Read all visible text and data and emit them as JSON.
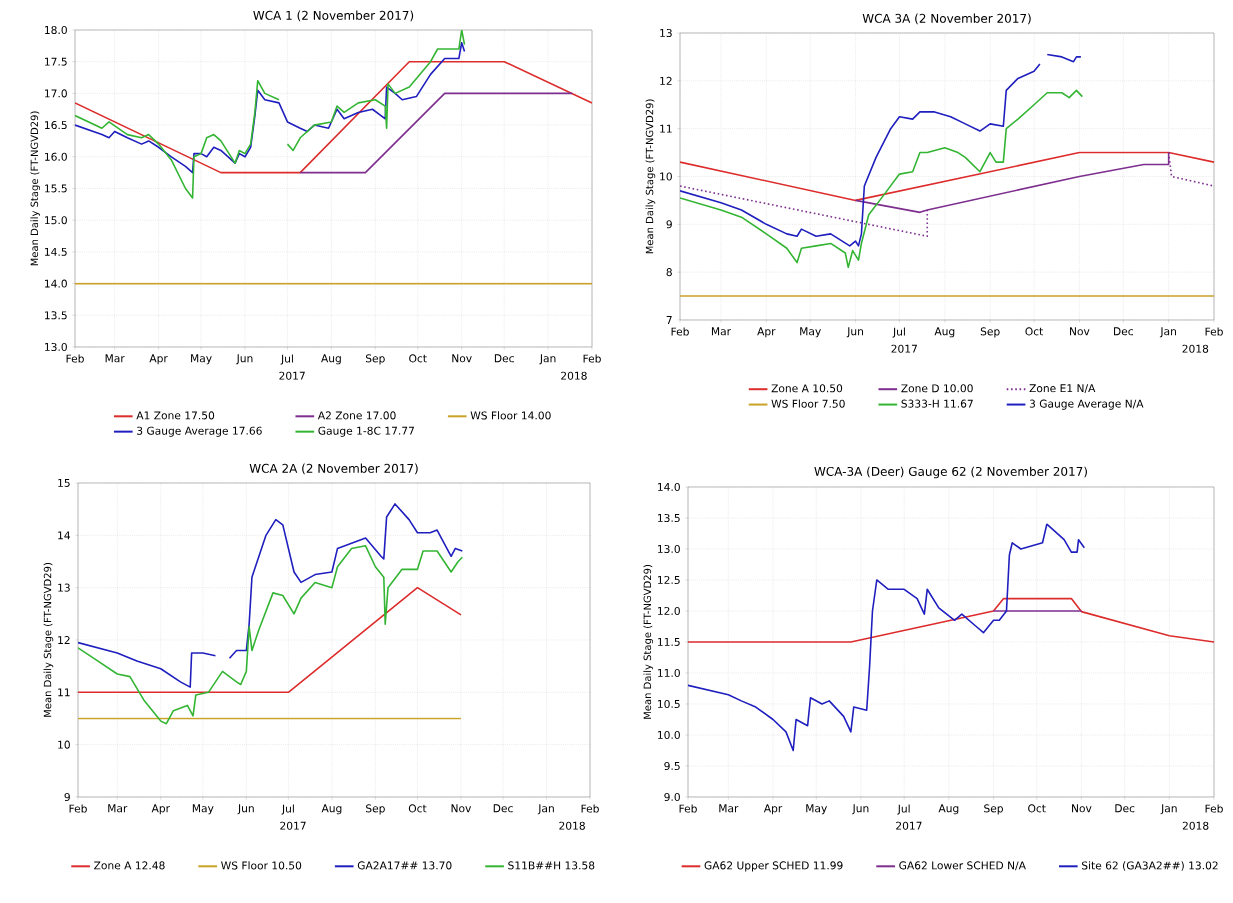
{
  "chart_data": [
    {
      "type": "line",
      "title": "WCA 1 (2 November 2017)",
      "ylabel": "Mean Daily Stage (FT-NGVD29)",
      "grid": true,
      "legend": "bottom",
      "annotations": [
        "2017",
        "2018"
      ],
      "xlim": [
        "2017-02-01",
        "2018-02-01"
      ],
      "xticks": [
        {
          "value": "2017-02-01",
          "label": "Feb"
        },
        {
          "value": "2017-03-01",
          "label": "Mar"
        },
        {
          "value": "2017-04-01",
          "label": "Apr"
        },
        {
          "value": "2017-05-01",
          "label": "May"
        },
        {
          "value": "2017-06-01",
          "label": "Jun"
        },
        {
          "value": "2017-07-01",
          "label": "Jul"
        },
        {
          "value": "2017-08-01",
          "label": "Aug"
        },
        {
          "value": "2017-09-01",
          "label": "Sep"
        },
        {
          "value": "2017-10-01",
          "label": "Oct"
        },
        {
          "value": "2017-11-01",
          "label": "Nov"
        },
        {
          "value": "2017-12-01",
          "label": "Dec"
        },
        {
          "value": "2018-01-01",
          "label": "Jan"
        },
        {
          "value": "2018-02-01",
          "label": "Feb"
        }
      ],
      "ylim": [
        13,
        18
      ],
      "yticks": [
        {
          "value": 13,
          "label": "13.0"
        },
        13.5,
        {
          "value": 14,
          "label": "14.0"
        },
        14.5,
        {
          "value": 15,
          "label": "15.0"
        },
        15.5,
        {
          "value": 16,
          "label": "16.0"
        },
        16.5,
        {
          "value": 17,
          "label": "17.0"
        },
        17.5,
        {
          "value": 18,
          "label": "18.0"
        }
      ],
      "series": [
        {
          "name": "A1 Zone 17.50",
          "color": "#dd2c2c",
          "x": [
            "2017-02-01",
            "2017-05-15",
            "2017-07-10",
            "2017-09-25",
            "2017-12-01",
            "2018-02-01"
          ],
          "values": [
            16.85,
            15.75,
            15.75,
            17.5,
            17.5,
            16.85
          ]
        },
        {
          "name": "A2 Zone 17.00",
          "color": "#7d2e8e",
          "x": [
            "2017-07-10",
            "2017-08-25",
            "2017-10-20",
            "2018-01-18"
          ],
          "values": [
            15.75,
            15.75,
            17.0,
            17.0
          ]
        },
        {
          "name": "WS Floor 14.00",
          "color": "#c9a227",
          "x": [
            "2017-02-01",
            "2018-02-01"
          ],
          "values": [
            14.0,
            14.0
          ]
        },
        {
          "name": "3 Gauge Average 17.66",
          "color": "#1f1fbf",
          "x": [
            "2017-02-01",
            "2017-02-20",
            "2017-02-25",
            "2017-03-01",
            "2017-03-10",
            "2017-03-20",
            "2017-03-25",
            "2017-04-01",
            "2017-04-10",
            "2017-04-20",
            "2017-04-25",
            "2017-04-26",
            "2017-05-01",
            "2017-05-05",
            "2017-05-10",
            "2017-05-15",
            "2017-05-25",
            "2017-05-28",
            "2017-06-01",
            "2017-06-05",
            "2017-06-08",
            "2017-06-10",
            "2017-06-15",
            "2017-06-25",
            "2017-07-01",
            "2017-07-10",
            "2017-07-15",
            "2017-07-20",
            "2017-07-30",
            "2017-08-01",
            "2017-08-05",
            "2017-08-10",
            "2017-08-20",
            "2017-08-30",
            "2017-09-05",
            "2017-09-08",
            "2017-09-09",
            "2017-09-15",
            "2017-09-20",
            "2017-09-30",
            "2017-10-10",
            "2017-10-20",
            "2017-10-30",
            "2017-11-01",
            "2017-11-03"
          ],
          "values": [
            16.5,
            16.35,
            16.3,
            16.4,
            16.3,
            16.2,
            16.25,
            16.15,
            16.0,
            15.85,
            15.75,
            16.05,
            16.05,
            16.0,
            16.15,
            16.1,
            15.9,
            16.05,
            16.0,
            16.15,
            16.65,
            17.05,
            16.9,
            16.85,
            16.55,
            16.45,
            16.4,
            16.5,
            16.45,
            16.55,
            16.75,
            16.6,
            16.7,
            16.75,
            16.65,
            16.6,
            17.1,
            17.0,
            16.9,
            16.95,
            17.3,
            17.55,
            17.55,
            17.8,
            17.66
          ]
        },
        {
          "name": "Gauge 1-8C 17.77",
          "color": "#33b533",
          "x": [
            "2017-02-01",
            "2017-02-20",
            "2017-02-25",
            "2017-03-10",
            "2017-03-20",
            "2017-03-25",
            "2017-04-01",
            "2017-04-10",
            "2017-04-20",
            "2017-04-25",
            "2017-04-26",
            "2017-05-01",
            "2017-05-05",
            "2017-05-10",
            "2017-05-15",
            "2017-05-25",
            "2017-05-28",
            "2017-06-01",
            "2017-06-05",
            "2017-06-08",
            "2017-06-10",
            "2017-06-15",
            "2017-06-25",
            "2017-06-28",
            "2017-07-01",
            "2017-07-05",
            "2017-07-10",
            "2017-07-20",
            "2017-08-01",
            "2017-08-05",
            "2017-08-10",
            "2017-08-20",
            "2017-09-01",
            "2017-09-08",
            "2017-09-09",
            "2017-09-10",
            "2017-09-15",
            "2017-09-25",
            "2017-10-10",
            "2017-10-15",
            "2017-10-30",
            "2017-11-01",
            "2017-11-03"
          ],
          "values": [
            16.65,
            16.45,
            16.55,
            16.35,
            16.3,
            16.35,
            16.2,
            15.95,
            15.5,
            15.35,
            16.0,
            16.05,
            16.3,
            16.35,
            16.25,
            15.9,
            16.1,
            16.05,
            16.2,
            16.7,
            17.2,
            17.0,
            16.9,
            null,
            16.2,
            16.1,
            16.3,
            16.5,
            16.55,
            16.8,
            16.7,
            16.85,
            16.9,
            16.8,
            16.45,
            17.15,
            17.0,
            17.1,
            17.5,
            17.7,
            17.7,
            18.0,
            17.77
          ]
        }
      ]
    },
    {
      "type": "line",
      "title": "WCA 3A (2 November 2017)",
      "ylabel": "Mean Daily Stage (FT-NGVD29)",
      "grid": true,
      "legend": "bottom",
      "annotations": [
        "2017",
        "2018"
      ],
      "xlim": [
        "2017-02-01",
        "2018-02-01"
      ],
      "xticks": [
        {
          "value": "2017-02-01",
          "label": "Feb"
        },
        {
          "value": "2017-03-01",
          "label": "Mar"
        },
        {
          "value": "2017-04-01",
          "label": "Apr"
        },
        {
          "value": "2017-05-01",
          "label": "May"
        },
        {
          "value": "2017-06-01",
          "label": "Jun"
        },
        {
          "value": "2017-07-01",
          "label": "Jul"
        },
        {
          "value": "2017-08-01",
          "label": "Aug"
        },
        {
          "value": "2017-09-01",
          "label": "Sep"
        },
        {
          "value": "2017-10-01",
          "label": "Oct"
        },
        {
          "value": "2017-11-01",
          "label": "Nov"
        },
        {
          "value": "2017-12-01",
          "label": "Dec"
        },
        {
          "value": "2018-01-01",
          "label": "Jan"
        },
        {
          "value": "2018-02-01",
          "label": "Feb"
        }
      ],
      "ylim": [
        7,
        13
      ],
      "yticks": [
        7,
        8,
        9,
        10,
        11,
        12,
        13
      ],
      "series": [
        {
          "name": "Zone A 10.50",
          "color": "#dd2c2c",
          "x": [
            "2017-02-01",
            "2017-06-01",
            "2017-11-01",
            "2018-01-01",
            "2018-02-01"
          ],
          "values": [
            10.3,
            9.5,
            10.5,
            10.5,
            10.3
          ]
        },
        {
          "name": "Zone D 10.00",
          "color": "#7d2e8e",
          "x": [
            "2017-06-01",
            "2017-07-15",
            "2017-07-20",
            "2017-11-01",
            "2017-12-15",
            "2018-01-01",
            "2018-01-01"
          ],
          "values": [
            9.5,
            9.25,
            9.3,
            10.0,
            10.25,
            10.25,
            10.5
          ]
        },
        {
          "name": "Zone E1 N/A",
          "color": "#7d2e8e",
          "line_style": "dotted",
          "x": [
            "2017-02-01",
            "2017-07-20",
            "2017-07-20",
            "2017-10-01",
            "2018-01-01",
            "2018-01-03",
            "2018-02-01"
          ],
          "values": [
            9.8,
            8.75,
            9.3,
            null,
            10.5,
            10.0,
            9.8
          ]
        },
        {
          "name": "WS Floor 7.50",
          "color": "#c9a227",
          "x": [
            "2017-02-01",
            "2018-02-01"
          ],
          "values": [
            7.5,
            7.5
          ]
        },
        {
          "name": "S333-H 11.67",
          "color": "#33b533",
          "x": [
            "2017-02-01",
            "2017-03-01",
            "2017-03-15",
            "2017-04-01",
            "2017-04-15",
            "2017-04-22",
            "2017-04-25",
            "2017-05-05",
            "2017-05-15",
            "2017-05-25",
            "2017-05-27",
            "2017-05-30",
            "2017-06-03",
            "2017-06-05",
            "2017-06-10",
            "2017-06-20",
            "2017-07-01",
            "2017-07-10",
            "2017-07-15",
            "2017-07-20",
            "2017-08-01",
            "2017-08-10",
            "2017-08-15",
            "2017-08-25",
            "2017-09-01",
            "2017-09-05",
            "2017-09-10",
            "2017-09-12",
            "2017-09-20",
            "2017-10-01",
            "2017-10-10",
            "2017-10-20",
            "2017-10-25",
            "2017-10-30",
            "2017-11-03"
          ],
          "values": [
            9.55,
            9.3,
            9.15,
            8.8,
            8.5,
            8.2,
            8.5,
            8.55,
            8.6,
            8.4,
            8.1,
            8.45,
            8.25,
            8.6,
            9.2,
            9.6,
            10.05,
            10.1,
            10.5,
            10.5,
            10.6,
            10.5,
            10.4,
            10.1,
            10.5,
            10.3,
            10.3,
            11.0,
            11.2,
            11.5,
            11.75,
            11.75,
            11.65,
            11.8,
            11.67
          ]
        },
        {
          "name": "3 Gauge Average N/A",
          "color": "#1f1fbf",
          "x": [
            "2017-02-01",
            "2017-03-01",
            "2017-03-15",
            "2017-04-01",
            "2017-04-15",
            "2017-04-22",
            "2017-04-25",
            "2017-05-05",
            "2017-05-15",
            "2017-05-28",
            "2017-06-01",
            "2017-06-03",
            "2017-06-05",
            "2017-06-07",
            "2017-06-15",
            "2017-06-25",
            "2017-07-01",
            "2017-07-10",
            "2017-07-15",
            "2017-07-25",
            "2017-08-05",
            "2017-08-15",
            "2017-08-25",
            "2017-09-01",
            "2017-09-10",
            "2017-09-12",
            "2017-09-20",
            "2017-10-01",
            "2017-10-05",
            "2017-10-08",
            "2017-10-10",
            "2017-10-20",
            "2017-10-28",
            "2017-10-30",
            "2017-11-02"
          ],
          "values": [
            9.7,
            9.45,
            9.3,
            9.0,
            8.8,
            8.75,
            8.9,
            8.75,
            8.8,
            8.55,
            8.65,
            8.55,
            8.8,
            9.8,
            10.4,
            11.0,
            11.25,
            11.2,
            11.35,
            11.35,
            11.25,
            11.1,
            10.95,
            11.1,
            11.05,
            11.8,
            12.05,
            12.2,
            12.35,
            null,
            12.55,
            12.5,
            12.4,
            12.5,
            12.5
          ]
        }
      ]
    },
    {
      "type": "line",
      "title": "WCA 2A (2 November 2017)",
      "ylabel": "Mean Daily Stage (FT-NGVD29)",
      "grid": true,
      "legend": "bottom",
      "annotations": [
        "2017",
        "2018"
      ],
      "xlim": [
        "2017-02-01",
        "2018-02-01"
      ],
      "xticks": [
        {
          "value": "2017-02-01",
          "label": "Feb"
        },
        {
          "value": "2017-03-01",
          "label": "Mar"
        },
        {
          "value": "2017-04-01",
          "label": "Apr"
        },
        {
          "value": "2017-05-01",
          "label": "May"
        },
        {
          "value": "2017-06-01",
          "label": "Jun"
        },
        {
          "value": "2017-07-01",
          "label": "Jul"
        },
        {
          "value": "2017-08-01",
          "label": "Aug"
        },
        {
          "value": "2017-09-01",
          "label": "Sep"
        },
        {
          "value": "2017-10-01",
          "label": "Oct"
        },
        {
          "value": "2017-11-01",
          "label": "Nov"
        },
        {
          "value": "2017-12-01",
          "label": "Dec"
        },
        {
          "value": "2018-01-01",
          "label": "Jan"
        },
        {
          "value": "2018-02-01",
          "label": "Feb"
        }
      ],
      "ylim": [
        9,
        15
      ],
      "yticks": [
        9,
        10,
        11,
        12,
        13,
        14,
        15
      ],
      "series": [
        {
          "name": "Zone A 12.48",
          "color": "#dd2c2c",
          "x": [
            "2017-02-01",
            "2017-07-01",
            "2017-10-01",
            "2017-11-01"
          ],
          "values": [
            11.0,
            11.0,
            13.0,
            12.48
          ]
        },
        {
          "name": "WS Floor 10.50",
          "color": "#c9a227",
          "x": [
            "2017-02-01",
            "2017-11-01"
          ],
          "values": [
            10.5,
            10.5
          ]
        },
        {
          "name": "GA2A17## 13.70",
          "color": "#1f1fbf",
          "x": [
            "2017-02-01",
            "2017-03-01",
            "2017-03-15",
            "2017-04-01",
            "2017-04-15",
            "2017-04-22",
            "2017-04-23",
            "2017-05-01",
            "2017-05-10",
            "2017-05-15",
            "2017-05-20",
            "2017-05-25",
            "2017-06-01",
            "2017-06-03",
            "2017-06-05",
            "2017-06-15",
            "2017-06-22",
            "2017-06-27",
            "2017-07-05",
            "2017-07-10",
            "2017-07-20",
            "2017-08-01",
            "2017-08-05",
            "2017-08-15",
            "2017-08-25",
            "2017-09-05",
            "2017-09-07",
            "2017-09-09",
            "2017-09-15",
            "2017-09-25",
            "2017-10-01",
            "2017-10-10",
            "2017-10-15",
            "2017-10-25",
            "2017-10-28",
            "2017-11-02"
          ],
          "values": [
            11.95,
            11.75,
            11.6,
            11.45,
            11.2,
            11.1,
            11.75,
            11.75,
            11.7,
            null,
            11.65,
            11.8,
            11.8,
            12.3,
            13.2,
            14.0,
            14.3,
            14.2,
            13.3,
            13.1,
            13.25,
            13.3,
            13.75,
            13.85,
            13.95,
            13.6,
            13.55,
            14.35,
            14.6,
            14.3,
            14.05,
            14.05,
            14.1,
            13.6,
            13.75,
            13.7
          ]
        },
        {
          "name": "S11B##H 13.58",
          "color": "#33b533",
          "x": [
            "2017-02-01",
            "2017-02-15",
            "2017-03-01",
            "2017-03-10",
            "2017-03-20",
            "2017-04-01",
            "2017-04-05",
            "2017-04-10",
            "2017-04-20",
            "2017-04-24",
            "2017-04-26",
            "2017-05-05",
            "2017-05-15",
            "2017-05-25",
            "2017-05-28",
            "2017-06-01",
            "2017-06-03",
            "2017-06-05",
            "2017-06-10",
            "2017-06-20",
            "2017-06-27",
            "2017-07-05",
            "2017-07-10",
            "2017-07-20",
            "2017-08-01",
            "2017-08-05",
            "2017-08-15",
            "2017-08-25",
            "2017-09-01",
            "2017-09-07",
            "2017-09-08",
            "2017-09-10",
            "2017-09-20",
            "2017-10-01",
            "2017-10-05",
            "2017-10-15",
            "2017-10-25",
            "2017-10-30",
            "2017-11-02"
          ],
          "values": [
            11.85,
            11.6,
            11.35,
            11.3,
            10.85,
            10.45,
            10.4,
            10.65,
            10.75,
            10.55,
            10.95,
            11.0,
            11.4,
            11.2,
            11.15,
            11.4,
            12.25,
            11.8,
            12.2,
            12.9,
            12.85,
            12.5,
            12.8,
            13.1,
            13.0,
            13.4,
            13.75,
            13.8,
            13.4,
            13.2,
            12.3,
            13.0,
            13.35,
            13.35,
            13.7,
            13.7,
            13.3,
            13.5,
            13.58
          ]
        }
      ]
    },
    {
      "type": "line",
      "title": "WCA-3A (Deer) Gauge 62 (2 November 2017)",
      "ylabel": "Mean Daily Stage (FT-NGVD29)",
      "grid": true,
      "legend": "bottom",
      "annotations": [
        "2017",
        "2018"
      ],
      "xlim": [
        "2017-02-01",
        "2018-02-01"
      ],
      "xticks": [
        {
          "value": "2017-02-01",
          "label": "Feb"
        },
        {
          "value": "2017-03-01",
          "label": "Mar"
        },
        {
          "value": "2017-04-01",
          "label": "Apr"
        },
        {
          "value": "2017-05-01",
          "label": "May"
        },
        {
          "value": "2017-06-01",
          "label": "Jun"
        },
        {
          "value": "2017-07-01",
          "label": "Jul"
        },
        {
          "value": "2017-08-01",
          "label": "Aug"
        },
        {
          "value": "2017-09-01",
          "label": "Sep"
        },
        {
          "value": "2017-10-01",
          "label": "Oct"
        },
        {
          "value": "2017-11-01",
          "label": "Nov"
        },
        {
          "value": "2017-12-01",
          "label": "Dec"
        },
        {
          "value": "2018-01-01",
          "label": "Jan"
        },
        {
          "value": "2018-02-01",
          "label": "Feb"
        }
      ],
      "ylim": [
        9,
        14
      ],
      "yticks": [
        {
          "value": 9,
          "label": "9.0"
        },
        9.5,
        {
          "value": 10,
          "label": "10.0"
        },
        10.5,
        {
          "value": 11,
          "label": "11.0"
        },
        11.5,
        {
          "value": 12,
          "label": "12.0"
        },
        12.5,
        {
          "value": 13,
          "label": "13.0"
        },
        13.5,
        {
          "value": 14,
          "label": "14.0"
        }
      ],
      "series": [
        {
          "name": "GA62 Upper SCHED 11.99",
          "color": "#dd2c2c",
          "x": [
            "2017-02-01",
            "2017-05-25",
            "2017-09-01",
            "2017-09-08",
            "2017-10-25",
            "2017-11-01",
            "2018-01-01",
            "2018-02-01"
          ],
          "values": [
            11.5,
            11.5,
            12.0,
            12.2,
            12.2,
            11.99,
            11.6,
            11.5
          ]
        },
        {
          "name": "GA62 Lower SCHED N/A",
          "color": "#7d2e8e",
          "x": [
            "2017-09-01",
            "2017-11-01"
          ],
          "values": [
            12.0,
            12.0
          ]
        },
        {
          "name": "Site 62 (GA3A2##) 13.02",
          "color": "#1f1fbf",
          "x": [
            "2017-02-01",
            "2017-03-01",
            "2017-03-10",
            "2017-03-20",
            "2017-04-01",
            "2017-04-10",
            "2017-04-15",
            "2017-04-17",
            "2017-04-25",
            "2017-04-27",
            "2017-05-05",
            "2017-05-10",
            "2017-05-20",
            "2017-05-25",
            "2017-05-27",
            "2017-06-05",
            "2017-06-07",
            "2017-06-09",
            "2017-06-12",
            "2017-06-20",
            "2017-07-01",
            "2017-07-10",
            "2017-07-15",
            "2017-07-17",
            "2017-07-25",
            "2017-08-05",
            "2017-08-10",
            "2017-08-20",
            "2017-08-25",
            "2017-09-01",
            "2017-09-05",
            "2017-09-10",
            "2017-09-12",
            "2017-09-14",
            "2017-09-20",
            "2017-10-05",
            "2017-10-08",
            "2017-10-20",
            "2017-10-25",
            "2017-10-29",
            "2017-10-30",
            "2017-11-03"
          ],
          "values": [
            10.8,
            10.65,
            10.55,
            10.45,
            10.25,
            10.05,
            9.75,
            10.25,
            10.15,
            10.6,
            10.5,
            10.55,
            10.3,
            10.05,
            10.45,
            10.4,
            11.1,
            12.0,
            12.5,
            12.35,
            12.35,
            12.2,
            11.95,
            12.35,
            12.05,
            11.85,
            11.95,
            11.75,
            11.65,
            11.85,
            11.85,
            12.0,
            12.9,
            13.1,
            13.0,
            13.1,
            13.4,
            13.15,
            12.95,
            12.95,
            13.15,
            13.02
          ]
        }
      ]
    }
  ]
}
